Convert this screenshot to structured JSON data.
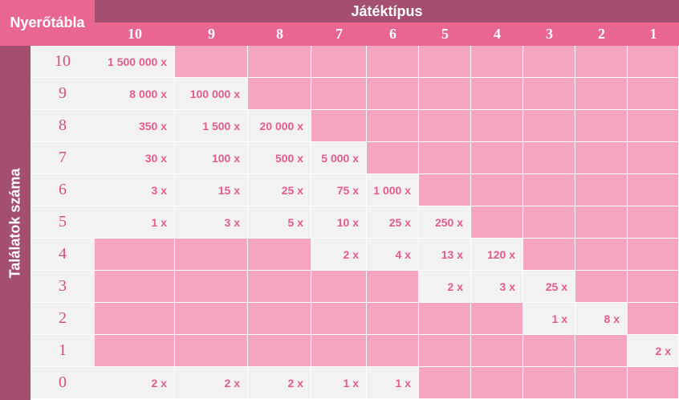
{
  "header": {
    "corner_label": "Nyerőtábla",
    "top_title": "Játéktípus",
    "side_title": "Találatok száma"
  },
  "columns": [
    "10",
    "9",
    "8",
    "7",
    "6",
    "5",
    "4",
    "3",
    "2",
    "1"
  ],
  "rows": [
    {
      "label": "10",
      "cells": [
        "1 500 000 x",
        "",
        "",
        "",
        "",
        "",
        "",
        "",
        "",
        ""
      ]
    },
    {
      "label": "9",
      "cells": [
        "8 000 x",
        "100 000 x",
        "",
        "",
        "",
        "",
        "",
        "",
        "",
        ""
      ]
    },
    {
      "label": "8",
      "cells": [
        "350 x",
        "1 500 x",
        "20 000 x",
        "",
        "",
        "",
        "",
        "",
        "",
        ""
      ]
    },
    {
      "label": "7",
      "cells": [
        "30 x",
        "100 x",
        "500 x",
        "5 000 x",
        "",
        "",
        "",
        "",
        "",
        ""
      ]
    },
    {
      "label": "6",
      "cells": [
        "3 x",
        "15 x",
        "25 x",
        "75 x",
        "1 000 x",
        "",
        "",
        "",
        "",
        ""
      ]
    },
    {
      "label": "5",
      "cells": [
        "1 x",
        "3 x",
        "5 x",
        "10 x",
        "25 x",
        "250 x",
        "",
        "",
        "",
        ""
      ]
    },
    {
      "label": "4",
      "cells": [
        "",
        "",
        "",
        "2 x",
        "4 x",
        "13 x",
        "120 x",
        "",
        "",
        ""
      ]
    },
    {
      "label": "3",
      "cells": [
        "",
        "",
        "",
        "",
        "",
        "2 x",
        "3 x",
        "25 x",
        "",
        ""
      ]
    },
    {
      "label": "2",
      "cells": [
        "",
        "",
        "",
        "",
        "",
        "",
        "",
        "1 x",
        "8 x",
        ""
      ]
    },
    {
      "label": "1",
      "cells": [
        "",
        "",
        "",
        "",
        "",
        "",
        "",
        "",
        "",
        "2 x"
      ]
    },
    {
      "label": "0",
      "cells": [
        "2 x",
        "2 x",
        "2 x",
        "1 x",
        "1 x",
        "",
        "",
        "",
        "",
        ""
      ]
    }
  ]
}
